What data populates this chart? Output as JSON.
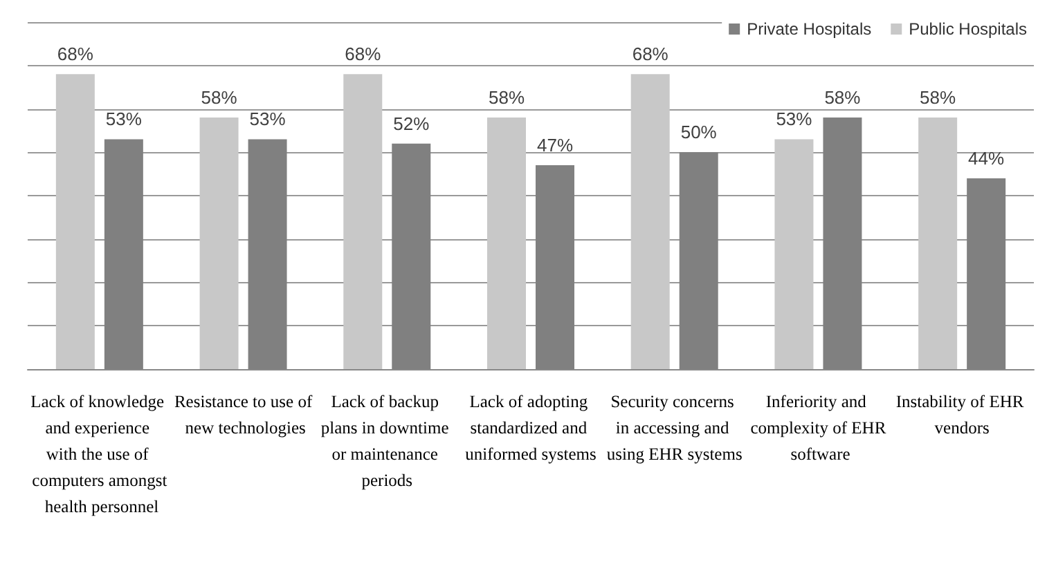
{
  "chart_data": {
    "type": "bar",
    "categories": [
      "Lack of knowledge and experience with the use of computers amongst health personnel",
      "Resistance to use of new technologies",
      "Lack of backup plans in downtime or maintenance periods",
      "Lack of adopting standardized and uniformed systems",
      "Security concerns in accessing and using EHR systems",
      "Inferiority and complexity of EHR software",
      "Instability of EHR vendors"
    ],
    "series": [
      {
        "name": "Public Hospitals",
        "color": "#c8c8c8",
        "values": [
          68,
          58,
          68,
          58,
          68,
          53,
          58
        ],
        "value_labels": [
          "68%",
          "58%",
          "68%",
          "58%",
          "68%",
          "53%",
          "58%"
        ]
      },
      {
        "name": "Private Hospitals",
        "color": "#808080",
        "values": [
          53,
          53,
          52,
          47,
          50,
          58,
          44
        ],
        "value_labels": [
          "53%",
          "53%",
          "52%",
          "47%",
          "50%",
          "58%",
          "44%"
        ]
      }
    ],
    "ylim": [
      0,
      80
    ],
    "yticks": [
      {
        "value": 0,
        "label": null
      },
      {
        "value": 10,
        "label": null
      },
      {
        "value": 20,
        "label": null
      },
      {
        "value": 30,
        "label": null
      },
      {
        "value": 40,
        "label": null
      },
      {
        "value": 50,
        "label": null
      },
      {
        "value": 60,
        "label": null
      },
      {
        "value": 70,
        "label": null
      },
      {
        "value": 80,
        "label": null
      }
    ],
    "tick_labels": "x",
    "grid": "y",
    "legend": "top right"
  }
}
